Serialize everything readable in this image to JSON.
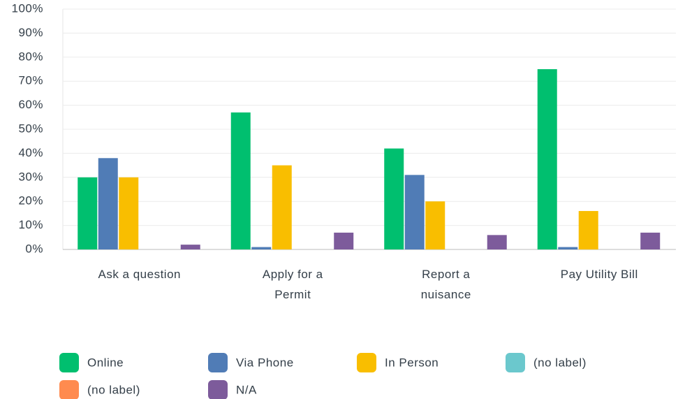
{
  "chart_data": {
    "type": "bar",
    "categories": [
      "Ask a question",
      "Apply for a Permit",
      "Report a nuisance",
      "Pay Utility Bill"
    ],
    "series": [
      {
        "name": "Online",
        "color": "#00bf6f",
        "values": [
          30,
          57,
          42,
          75
        ]
      },
      {
        "name": "Via Phone",
        "color": "#507cb6",
        "values": [
          38,
          1,
          31,
          1
        ]
      },
      {
        "name": "In Person",
        "color": "#f9be00",
        "values": [
          30,
          35,
          20,
          16
        ]
      },
      {
        "name": "(no label)",
        "color": "#6bc8cd",
        "values": [
          0,
          0,
          0,
          0
        ]
      },
      {
        "name": "(no label)",
        "color": "#ff8b4f",
        "values": [
          0,
          0,
          0,
          0
        ]
      },
      {
        "name": "N/A",
        "color": "#7d5b9b",
        "values": [
          2,
          7,
          6,
          7
        ]
      }
    ],
    "ylim": [
      0,
      100
    ],
    "yticks": [
      {
        "value": 0,
        "label": "0%"
      },
      {
        "value": 10,
        "label": "10%"
      },
      {
        "value": 20,
        "label": "20%"
      },
      {
        "value": 30,
        "label": "30%"
      },
      {
        "value": 40,
        "label": "40%"
      },
      {
        "value": 50,
        "label": "50%"
      },
      {
        "value": 60,
        "label": "60%"
      },
      {
        "value": 70,
        "label": "70%"
      },
      {
        "value": 80,
        "label": "80%"
      },
      {
        "value": 90,
        "label": "90%"
      },
      {
        "value": 100,
        "label": "100%"
      }
    ],
    "grid": true,
    "legend": "bottom"
  }
}
